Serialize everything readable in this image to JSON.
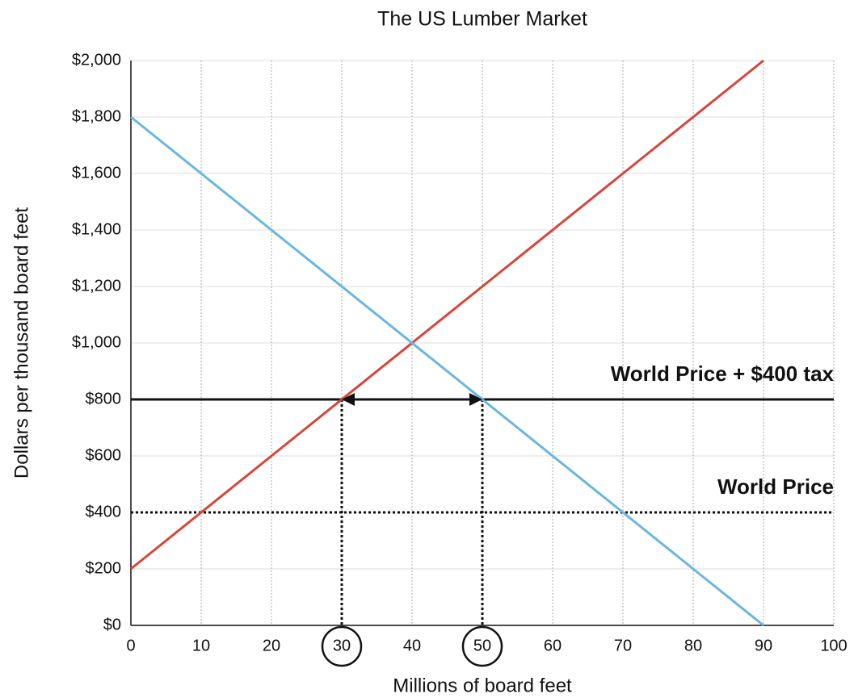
{
  "chart_data": {
    "type": "line",
    "title": "The US Lumber Market",
    "xlabel": "Millions of board feet",
    "ylabel": "Dollars per thousand board feet",
    "series": [
      {
        "color": "#d6453b",
        "x": [
          0,
          90
        ],
        "values": [
          200,
          2000
        ]
      },
      {
        "color": "#6bb5e0",
        "x": [
          0,
          90
        ],
        "values": [
          1800,
          0
        ]
      }
    ],
    "xlim": [
      0,
      100
    ],
    "xticks": [
      0,
      10,
      20,
      30,
      40,
      50,
      60,
      70,
      80,
      90,
      100
    ],
    "ylim": [
      0,
      2000
    ],
    "yticks": [
      {
        "value": 0,
        "label": "$0"
      },
      {
        "value": 200,
        "label": "$200"
      },
      {
        "value": 400,
        "label": "$400"
      },
      {
        "value": 600,
        "label": "$600"
      },
      {
        "value": 800,
        "label": "$800"
      },
      {
        "value": 1000,
        "label": "$1,000"
      },
      {
        "value": 1200,
        "label": "$1,200"
      },
      {
        "value": 1400,
        "label": "$1,400"
      },
      {
        "value": 1600,
        "label": "$1,600"
      },
      {
        "value": 1800,
        "label": "$1,800"
      },
      {
        "value": 2000,
        "label": "$2,000"
      }
    ],
    "grid": true,
    "hlines": [
      {
        "value": 800,
        "label": "World Price + $400 tax",
        "style": "solid"
      },
      {
        "value": 400,
        "label": "World Price",
        "style": "dotted"
      }
    ],
    "vlines": [
      {
        "value": 30,
        "ymax": 800
      },
      {
        "value": 50,
        "ymax": 800
      }
    ],
    "arrows": true,
    "circled_xticks": [
      30,
      50
    ]
  }
}
